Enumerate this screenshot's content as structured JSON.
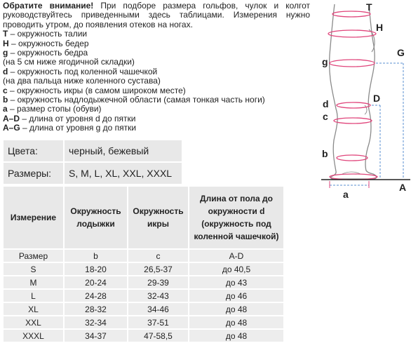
{
  "intro": {
    "attention": "Обратите внимание!",
    "text": " При подборе размера гольфов, чулок и колгот руководствуйтесь приведенными здесь таблицами. Измерения нужно проводить утром, до появления отеков на ногах."
  },
  "legend": [
    {
      "key": "T",
      "text": " – окружность талии"
    },
    {
      "key": "H",
      "text": " – окружность бедер"
    },
    {
      "key": "g",
      "text": " – окружность бедра"
    },
    {
      "key": "",
      "text": "(на 5 см ниже ягодичной складки)"
    },
    {
      "key": "d",
      "text": " – окружность под коленной чашечкой"
    },
    {
      "key": "",
      "text": "(на два пальца ниже коленного сустава)"
    },
    {
      "key": "c",
      "text": " – окружность икры (в самом широком месте)"
    },
    {
      "key": "b",
      "text": " – окружность надлодыжечной области (самая тонкая часть ноги)"
    },
    {
      "key": "a",
      "text": " – размер стопы (обуви)"
    },
    {
      "key": "A–D",
      "text": " – длина от уровня d до пятки"
    },
    {
      "key": "A–G",
      "text": " – длина от уровня g до пятки"
    }
  ],
  "properties": {
    "colors_label": "Цвета:",
    "colors_value": "черный, бежевый",
    "sizes_label": "Размеры:",
    "sizes_value": "S, M, L, XL, XXL, XXXL"
  },
  "size_table": {
    "headers": [
      "Измерение",
      "Окружность лодыжки",
      "Окружность икры",
      "Длина от пола до окружности d (окружность под коленной чашечкой)"
    ],
    "rows": [
      [
        "Размер",
        "b",
        "c",
        "A-D"
      ],
      [
        "S",
        "18-20",
        "26,5-37",
        "до 40,5"
      ],
      [
        "M",
        "20-24",
        "29-39",
        "до 43"
      ],
      [
        "L",
        "24-28",
        "32-43",
        "до 46"
      ],
      [
        "XL",
        "28-32",
        "34-46",
        "до 48"
      ],
      [
        "XXL",
        "32-34",
        "37-51",
        "до 48"
      ],
      [
        "XXXL",
        "34-37",
        "47-58,5",
        "до 48"
      ]
    ]
  },
  "diagram": {
    "labels": {
      "T": "T",
      "H": "H",
      "G": "G",
      "g": "g",
      "D": "D",
      "d": "d",
      "c": "c",
      "b": "b",
      "a": "a",
      "A": "A"
    },
    "colors": {
      "outline": "#8a8a8a",
      "measure": "#e0457b",
      "dimension": "#5a8fd0"
    }
  }
}
